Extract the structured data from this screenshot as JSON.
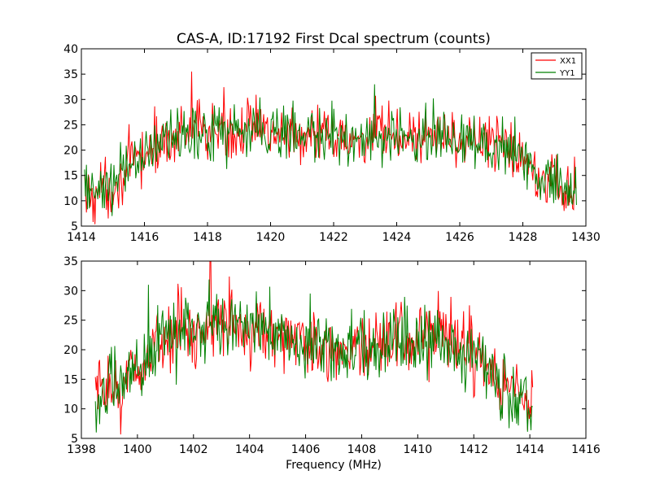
{
  "figure": {
    "title": "CAS-A, ID:17192 First Dcal spectrum (counts)",
    "colors": {
      "XX1": "#ff0000",
      "YY1": "#008000"
    }
  },
  "chart_data": [
    {
      "type": "line",
      "title": "CAS-A, ID:17192 First Dcal spectrum (counts)",
      "xlabel": "",
      "ylabel": "",
      "xlim": [
        1414,
        1430
      ],
      "ylim": [
        5,
        40
      ],
      "xticks": [
        1414,
        1416,
        1418,
        1420,
        1422,
        1424,
        1426,
        1428,
        1430
      ],
      "yticks": [
        5,
        10,
        15,
        20,
        25,
        30,
        35,
        40
      ],
      "x_range": [
        1414.1,
        1429.7
      ],
      "legend": {
        "position": "top-right",
        "entries": [
          "XX1",
          "YY1"
        ]
      },
      "envelope": {
        "x": [
          1414.1,
          1415.0,
          1415.6,
          1416.2,
          1417.0,
          1418.0,
          1419.0,
          1420.5,
          1422.0,
          1423.5,
          1425.0,
          1426.5,
          1427.5,
          1428.2,
          1428.8,
          1429.3,
          1429.7
        ],
        "y": [
          11,
          13,
          17,
          20,
          23,
          24,
          24,
          23.5,
          22,
          22.5,
          23,
          22,
          21,
          18,
          15,
          12,
          11
        ]
      },
      "noise_amplitude": 3,
      "series": [
        {
          "name": "XX1",
          "color": "#ff0000",
          "peak": {
            "x": 1417.5,
            "y": 35.5
          }
        },
        {
          "name": "YY1",
          "color": "#008000",
          "peak": {
            "x": 1423.3,
            "y": 33
          }
        }
      ],
      "grid": false
    },
    {
      "type": "line",
      "title": "",
      "xlabel": "Frequency (MHz)",
      "ylabel": "",
      "xlim": [
        1398,
        1416
      ],
      "ylim": [
        5,
        35
      ],
      "xticks": [
        1398,
        1400,
        1402,
        1404,
        1406,
        1408,
        1410,
        1412,
        1414,
        1416
      ],
      "yticks": [
        5,
        10,
        15,
        20,
        25,
        30,
        35
      ],
      "x_range": [
        1398.5,
        1414.1
      ],
      "envelope": {
        "x": [
          1398.5,
          1399.5,
          1400.2,
          1401.0,
          1402.0,
          1403.0,
          1404.0,
          1405.0,
          1406.0,
          1407.5,
          1409.0,
          1410.5,
          1411.5,
          1412.3,
          1413.0,
          1413.6,
          1414.1
        ],
        "y": [
          12,
          14,
          18,
          22,
          24,
          24.5,
          24,
          23,
          21,
          20,
          21,
          22,
          21,
          18,
          14,
          12,
          11
        ]
      },
      "noise_amplitude": 3,
      "series": [
        {
          "name": "XX1",
          "color": "#ff0000",
          "peak": {
            "x": 1402.6,
            "y": 35
          }
        },
        {
          "name": "YY1",
          "color": "#008000",
          "peak": {
            "x": 1400.4,
            "y": 31
          }
        }
      ],
      "grid": false
    }
  ]
}
